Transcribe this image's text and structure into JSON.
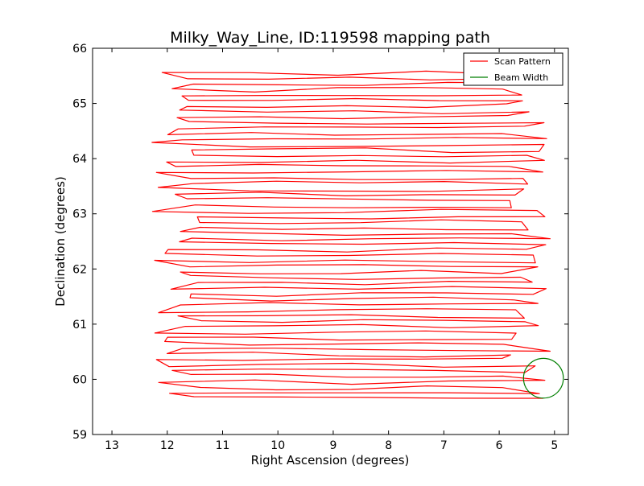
{
  "chart_data": {
    "type": "line",
    "title": "Milky_Way_Line, ID:119598 mapping path",
    "xlabel": "Right Ascension (degrees)",
    "ylabel": "Declination (degrees)",
    "xlim": [
      13.35,
      4.75
    ],
    "ylim": [
      59,
      66
    ],
    "x_reversed": true,
    "xticks": [
      13,
      12,
      11,
      10,
      9,
      8,
      7,
      6,
      5
    ],
    "yticks": [
      59,
      60,
      61,
      62,
      63,
      64,
      65,
      66
    ],
    "grid": false,
    "legend": {
      "position": "top-right",
      "entries": [
        "Scan Pattern",
        "Beam Width"
      ]
    },
    "series": [
      {
        "name": "Scan Pattern",
        "kind": "raster-scan",
        "color": "#ff0000",
        "dec_start": 59.65,
        "dec_end": 65.6,
        "row_spacing": 0.1,
        "ra_west": 11.7,
        "ra_east": 5.7
      },
      {
        "name": "Beam Width",
        "kind": "circle",
        "color": "#007f00",
        "center_ra": 5.2,
        "center_dec": 60.02,
        "radius_deg": 0.36
      }
    ]
  }
}
